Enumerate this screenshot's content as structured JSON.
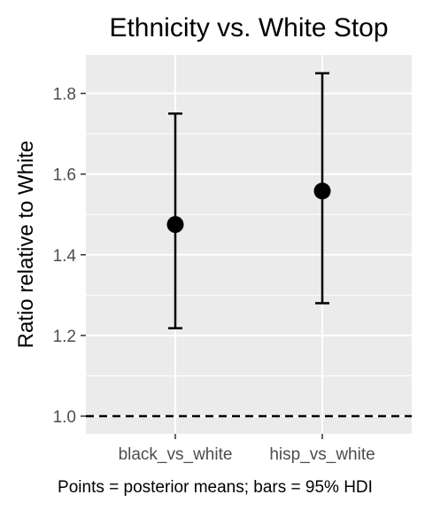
{
  "chart_data": {
    "type": "scatter",
    "title": "Ethnicity vs. White Stop",
    "xlabel": "",
    "ylabel": "Ratio relative to White",
    "caption": "Points = posterior means; bars = 95% HDI",
    "categories": [
      "black_vs_white",
      "hisp_vs_white"
    ],
    "points": [
      {
        "category": "black_vs_white",
        "mean": 1.475,
        "lower": 1.218,
        "upper": 1.75
      },
      {
        "category": "hisp_vs_white",
        "mean": 1.558,
        "lower": 1.28,
        "upper": 1.85
      }
    ],
    "reference_line": {
      "y": 1.0,
      "style": "dashed"
    },
    "yticks": [
      "1.0",
      "1.2",
      "1.4",
      "1.6",
      "1.8"
    ],
    "ylim": [
      0.96,
      1.9
    ],
    "grid": true,
    "background": "#ebebeb",
    "gridline_color": "#ffffff",
    "mark_color": "#000000"
  }
}
